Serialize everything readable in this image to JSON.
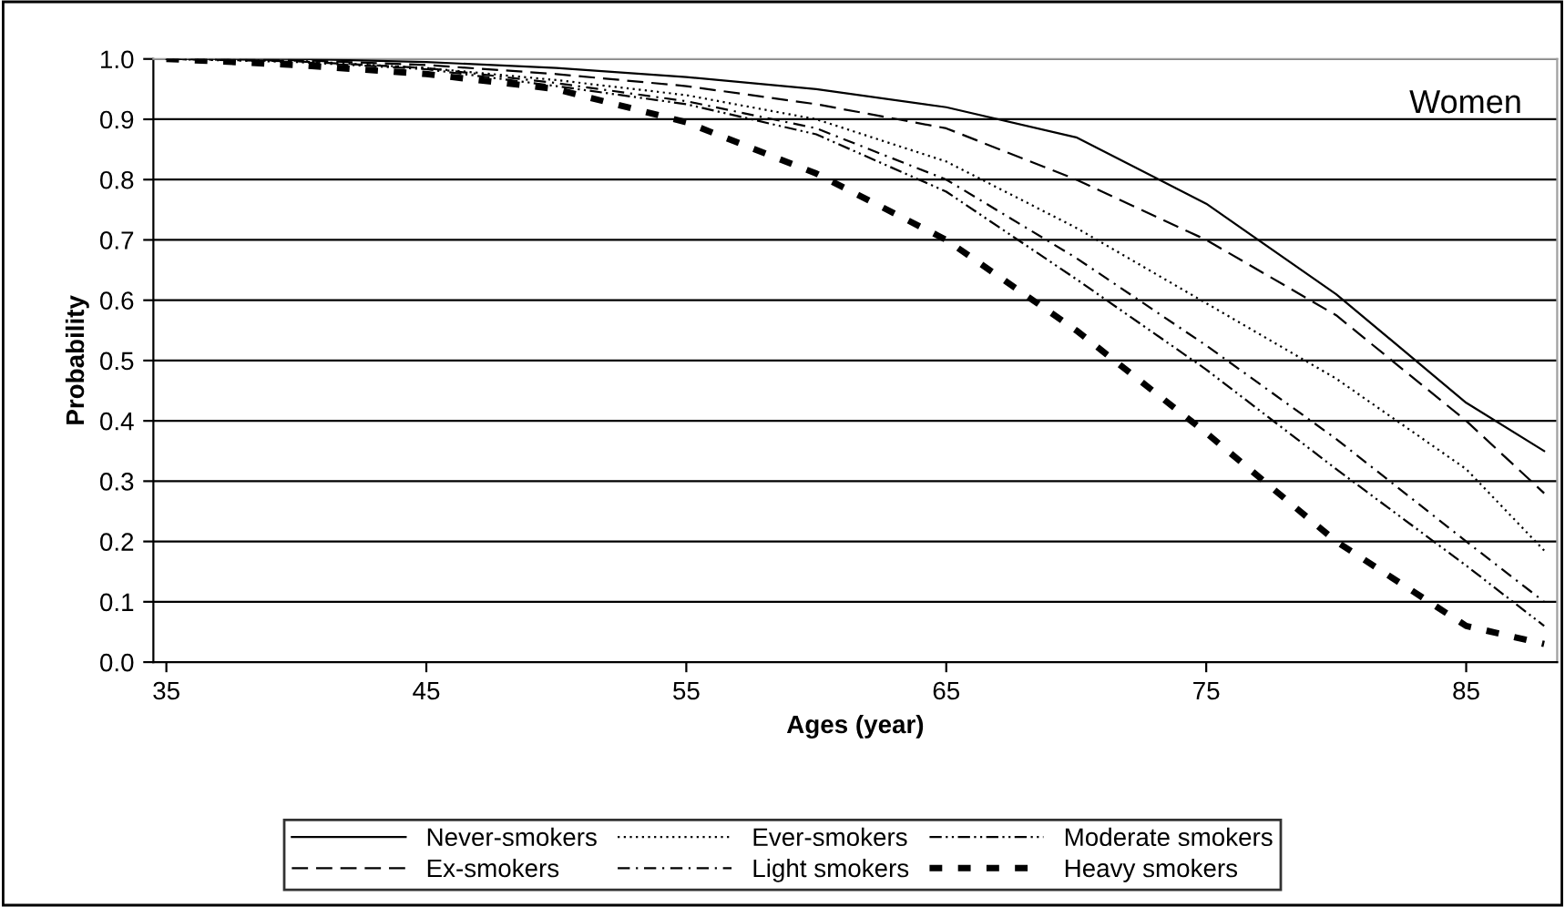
{
  "chart_data": {
    "type": "line",
    "xlabel": "Ages (year)",
    "ylabel": "Probability",
    "annotations": [
      "Women"
    ],
    "x": [
      35,
      40,
      45,
      50,
      55,
      60,
      65,
      70,
      75,
      80,
      85,
      88
    ],
    "series": [
      {
        "name": "Never-smokers",
        "color": "#000000",
        "line_style": "solid",
        "values": [
          1.0,
          1.0,
          0.995,
          0.985,
          0.97,
          0.95,
          0.92,
          0.87,
          0.76,
          0.61,
          0.43,
          0.35
        ]
      },
      {
        "name": "Ex-smokers",
        "color": "#000000",
        "line_style": "dashed",
        "values": [
          1.0,
          0.998,
          0.99,
          0.975,
          0.955,
          0.925,
          0.885,
          0.8,
          0.7,
          0.575,
          0.4,
          0.28
        ]
      },
      {
        "name": "Ever-smokers",
        "color": "#000000",
        "line_style": "dotted",
        "values": [
          1.0,
          0.997,
          0.985,
          0.965,
          0.94,
          0.9,
          0.83,
          0.72,
          0.595,
          0.47,
          0.32,
          0.185
        ]
      },
      {
        "name": "Light smokers",
        "color": "#000000",
        "line_style": "dashdot",
        "values": [
          1.0,
          0.996,
          0.985,
          0.96,
          0.93,
          0.885,
          0.8,
          0.67,
          0.525,
          0.37,
          0.2,
          0.1
        ]
      },
      {
        "name": "Moderate smokers",
        "color": "#000000",
        "line_style": "dashdotdot",
        "values": [
          1.0,
          0.995,
          0.983,
          0.955,
          0.925,
          0.875,
          0.78,
          0.635,
          0.485,
          0.32,
          0.16,
          0.06
        ]
      },
      {
        "name": "Heavy smokers",
        "color": "#000000",
        "line_style": "thickdashed",
        "values": [
          1.0,
          0.99,
          0.975,
          0.95,
          0.895,
          0.81,
          0.7,
          0.55,
          0.38,
          0.2,
          0.06,
          0.03
        ]
      }
    ],
    "xlim": [
      34.5,
      88.5
    ],
    "xticks": [
      35,
      45,
      55,
      65,
      75,
      85
    ],
    "ylim": [
      0.0,
      1.0
    ],
    "yticks": [
      {
        "value": 0,
        "label": "0.0"
      },
      {
        "value": 0.1,
        "label": "0.1"
      },
      {
        "value": 0.2,
        "label": "0.2"
      },
      {
        "value": 0.3,
        "label": "0.3"
      },
      {
        "value": 0.4,
        "label": "0.4"
      },
      {
        "value": 0.5,
        "label": "0.5"
      },
      {
        "value": 0.6,
        "label": "0.6"
      },
      {
        "value": 0.7,
        "label": "0.7"
      },
      {
        "value": 0.8,
        "label": "0.8"
      },
      {
        "value": 0.9,
        "label": "0.9"
      },
      {
        "value": 1.0,
        "label": "1.0"
      }
    ],
    "grid": "y",
    "legend": "bottom",
    "marker": "none"
  }
}
